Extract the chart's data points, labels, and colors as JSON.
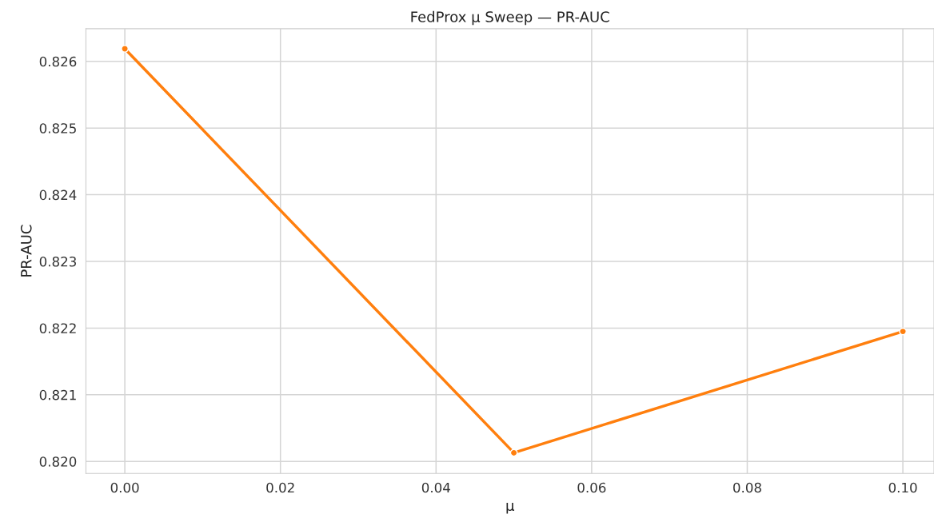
{
  "chart_data": {
    "type": "line",
    "title": "FedProx µ Sweep — PR-AUC",
    "xlabel": "µ",
    "ylabel": "PR-AUC",
    "x": [
      0.0,
      0.05,
      0.1
    ],
    "series": [
      {
        "color": "#ff7f0e",
        "values": [
          0.82619,
          0.82013,
          0.82195
        ]
      }
    ],
    "xlim": [
      -0.005,
      0.104
    ],
    "ylim": [
      0.81982,
      0.82649
    ],
    "xticks": [
      {
        "value": 0,
        "label": "0.00"
      },
      {
        "value": 0.02,
        "label": "0.02"
      },
      {
        "value": 0.04,
        "label": "0.04"
      },
      {
        "value": 0.06,
        "label": "0.06"
      },
      {
        "value": 0.08,
        "label": "0.08"
      },
      {
        "value": 0.1,
        "label": "0.10"
      }
    ],
    "yticks": [
      {
        "value": 0.82,
        "label": "0.820"
      },
      {
        "value": 0.821,
        "label": "0.821"
      },
      {
        "value": 0.822,
        "label": "0.822"
      },
      {
        "value": 0.823,
        "label": "0.823"
      },
      {
        "value": 0.824,
        "label": "0.824"
      },
      {
        "value": 0.825,
        "label": "0.825"
      },
      {
        "value": 0.826,
        "label": "0.826"
      }
    ],
    "grid": true,
    "marker": "circle",
    "line_style": "solid",
    "legend": false
  }
}
